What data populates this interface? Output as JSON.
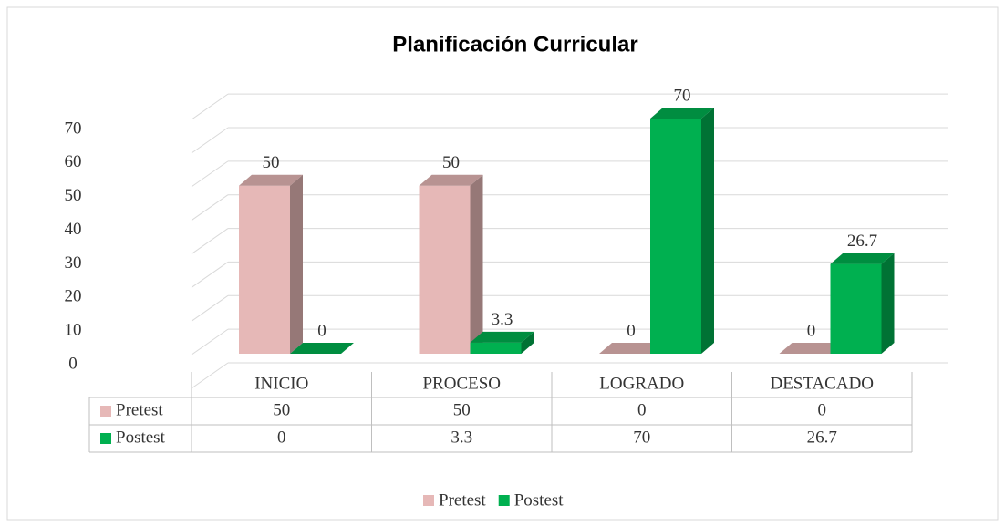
{
  "chart_data": {
    "type": "bar3d",
    "title": "Planificación Curricular",
    "categories": [
      "INICIO",
      "PROCESO",
      "LOGRADO",
      "DESTACADO"
    ],
    "series": [
      {
        "name": "Pretest",
        "color": "#e6b8b7",
        "values": [
          50,
          50,
          0,
          0
        ]
      },
      {
        "name": "Postest",
        "color": "#00b050",
        "values": [
          0,
          3.3,
          70,
          26.7
        ]
      }
    ],
    "ylim": [
      0,
      80
    ],
    "yticks": [
      0,
      10,
      20,
      30,
      40,
      50,
      60,
      70
    ],
    "grid": true,
    "legend": "bottom",
    "data_table": true
  }
}
